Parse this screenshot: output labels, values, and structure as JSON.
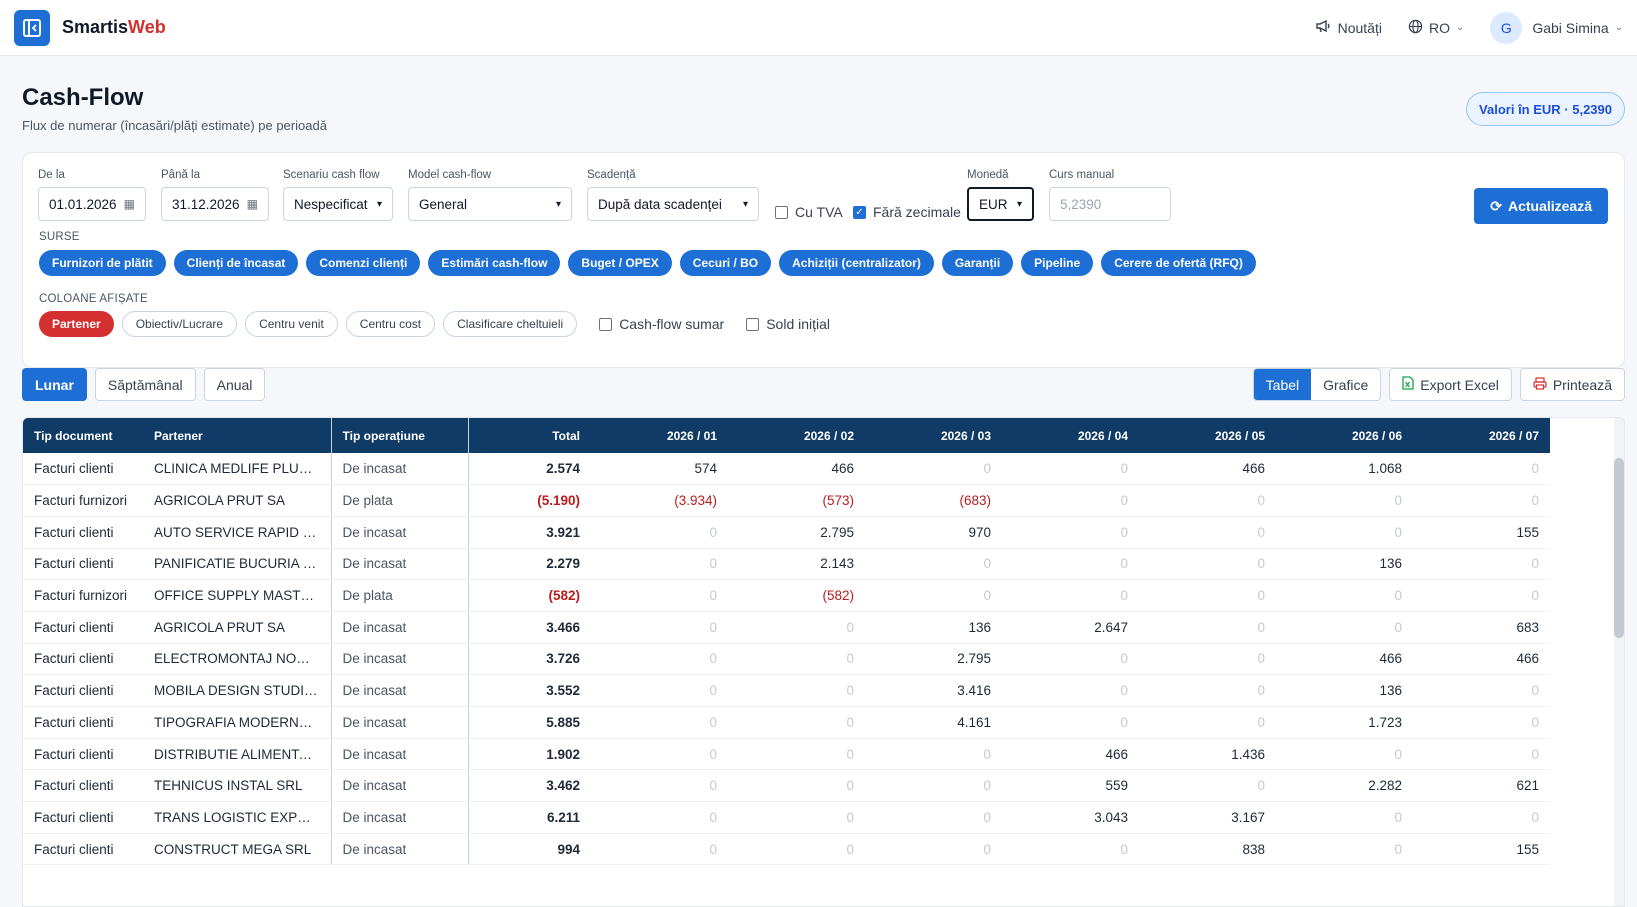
{
  "app": {
    "brand_main": "Smartis",
    "brand_accent": "Web"
  },
  "topbar": {
    "news": "Noutăți",
    "lang": "RO",
    "avatar_letter": "G",
    "user": "Gabi Simina"
  },
  "page": {
    "title": "Cash-Flow",
    "subtitle": "Flux de numerar (încasări/plăți estimate) pe perioadă",
    "rate_badge": "Valori în EUR · 5,2390"
  },
  "filters": {
    "from_label": "De la",
    "from_value": "01.01.2026",
    "to_label": "Până la",
    "to_value": "31.12.2026",
    "scenario_label": "Scenariu cash flow",
    "scenario_value": "Nespecificat",
    "model_label": "Model cash-flow",
    "model_value": "General",
    "due_label": "Scadență",
    "due_value": "După data scadenței",
    "vat_label": "Cu TVA",
    "vat_checked": false,
    "nodec_label": "Fără zecimale",
    "nodec_checked": true,
    "currency_label": "Monedă",
    "currency_value": "EUR",
    "manual_rate_label": "Curs manual",
    "manual_rate_placeholder": "5,2390",
    "refresh_button": "Actualizează",
    "sources_label": "SURSE",
    "sources": [
      "Furnizori de plătit",
      "Clienți de încasat",
      "Comenzi clienți",
      "Estimări cash-flow",
      "Buget / OPEX",
      "Cecuri / BO",
      "Achiziții (centralizator)",
      "Garanții",
      "Pipeline",
      "Cerere de ofertă (RFQ)"
    ],
    "columns_label": "COLOANE AFIȘATE",
    "columns": [
      "Partener",
      "Obiectiv/Lucrare",
      "Centru venit",
      "Centru cost",
      "Clasificare cheltuieli"
    ],
    "summary_label": "Cash-flow sumar",
    "initial_balance_label": "Sold inițial"
  },
  "periods": [
    "Lunar",
    "Săptămânal",
    "Anual"
  ],
  "view": {
    "table": "Tabel",
    "charts": "Grafice",
    "export": "Export Excel",
    "print": "Printează"
  },
  "table": {
    "headers": [
      "Tip document",
      "Partener",
      "Tip operațiune",
      "Total",
      "2026 / 01",
      "2026 / 02",
      "2026 / 03",
      "2026 / 04",
      "2026 / 05",
      "2026 / 06",
      "2026 / 07"
    ],
    "rows": [
      [
        "Facturi clienti",
        "CLINICA MEDLIFE PLUS SRL",
        "De incasat",
        "2.574",
        "574",
        "466",
        "0",
        "0",
        "466",
        "1.068",
        "0"
      ],
      [
        "Facturi furnizori",
        "AGRICOLA PRUT SA",
        "De plata",
        "(5.190)",
        "(3.934)",
        "(573)",
        "(683)",
        "0",
        "0",
        "0",
        "0"
      ],
      [
        "Facturi clienti",
        "AUTO SERVICE RAPID SRL",
        "De incasat",
        "3.921",
        "0",
        "2.795",
        "970",
        "0",
        "0",
        "0",
        "155"
      ],
      [
        "Facturi clienti",
        "PANIFICATIE BUCURIA SRL",
        "De incasat",
        "2.279",
        "0",
        "2.143",
        "0",
        "0",
        "0",
        "136",
        "0"
      ],
      [
        "Facturi furnizori",
        "OFFICE SUPPLY MASTER S...",
        "De plata",
        "(582)",
        "0",
        "(582)",
        "0",
        "0",
        "0",
        "0",
        "0"
      ],
      [
        "Facturi clienti",
        "AGRICOLA PRUT SA",
        "De incasat",
        "3.466",
        "0",
        "0",
        "136",
        "2.647",
        "0",
        "0",
        "683"
      ],
      [
        "Facturi clienti",
        "ELECTROMONTAJ NORD ...",
        "De incasat",
        "3.726",
        "0",
        "0",
        "2.795",
        "0",
        "0",
        "466",
        "466"
      ],
      [
        "Facturi clienti",
        "MOBILA DESIGN STUDIO ...",
        "De incasat",
        "3.552",
        "0",
        "0",
        "3.416",
        "0",
        "0",
        "136",
        "0"
      ],
      [
        "Facturi clienti",
        "TIPOGRAFIA MODERNA S...",
        "De incasat",
        "5.885",
        "0",
        "0",
        "4.161",
        "0",
        "0",
        "1.723",
        "0"
      ],
      [
        "Facturi clienti",
        "DISTRIBUTIE ALIMENTAR...",
        "De incasat",
        "1.902",
        "0",
        "0",
        "0",
        "466",
        "1.436",
        "0",
        "0"
      ],
      [
        "Facturi clienti",
        "TEHNICUS INSTAL SRL",
        "De incasat",
        "3.462",
        "0",
        "0",
        "0",
        "559",
        "0",
        "2.282",
        "621"
      ],
      [
        "Facturi clienti",
        "TRANS LOGISTIC EXPRES ...",
        "De incasat",
        "6.211",
        "0",
        "0",
        "0",
        "3.043",
        "3.167",
        "0",
        "0"
      ],
      [
        "Facturi clienti",
        "CONSTRUCT MEGA SRL",
        "De incasat",
        "994",
        "0",
        "0",
        "0",
        "0",
        "838",
        "0",
        "155"
      ]
    ]
  }
}
